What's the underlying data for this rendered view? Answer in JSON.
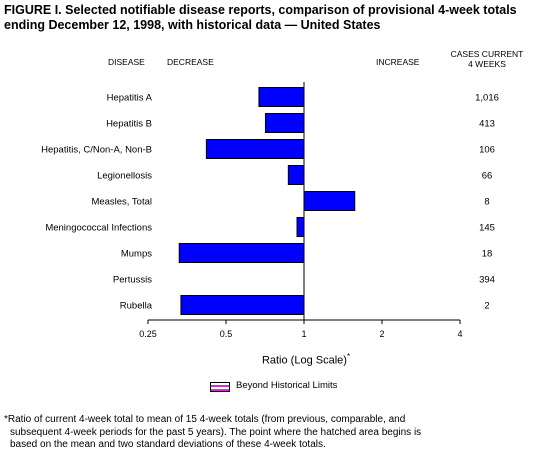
{
  "title": {
    "line1": "FIGURE I. Selected notifiable disease reports, comparison of provisional 4-week totals",
    "line2": "ending December 12, 1998, with historical data — United States"
  },
  "headers": {
    "disease": "DISEASE",
    "decrease": "DECREASE",
    "increase": "INCREASE",
    "cases_line1": "CASES CURRENT",
    "cases_line2": "4 WEEKS"
  },
  "chart_data": {
    "type": "bar",
    "orientation": "horizontal",
    "scale": "log",
    "categories": [
      "Hepatitis A",
      "Hepatitis B",
      "Hepatitis, C/Non-A, Non-B",
      "Legionellosis",
      "Measles, Total",
      "Meningococcal Infections",
      "Mumps",
      "Pertussis",
      "Rubella"
    ],
    "values": [
      0.67,
      0.71,
      0.42,
      0.87,
      1.57,
      0.94,
      0.33,
      1.0,
      0.335
    ],
    "cases": [
      "1,016",
      "413",
      "106",
      "66",
      "8",
      "145",
      "18",
      "394",
      "2"
    ],
    "xlabel": "Ratio (Log Scale)",
    "xlabel_marker": "*",
    "xticks": [
      0.25,
      0.5,
      1,
      2,
      4
    ],
    "xtick_labels": [
      "0.25",
      "0.5",
      "1",
      "2",
      "4"
    ],
    "xlim": [
      0.25,
      4
    ],
    "reference": 1,
    "bar_color": "#0000ff",
    "legend": [
      {
        "label": "Beyond Historical Limits",
        "color": "#cc33cc",
        "pattern": "hatched"
      }
    ]
  },
  "footnote": {
    "line1": "*Ratio of current 4-week total to mean of 15 4-week totals (from previous, comparable, and",
    "line2": "subsequent 4-week periods for the past 5 years). The point where the hatched area begins is",
    "line3": "based on the mean and two standard deviations of these 4-week totals."
  }
}
